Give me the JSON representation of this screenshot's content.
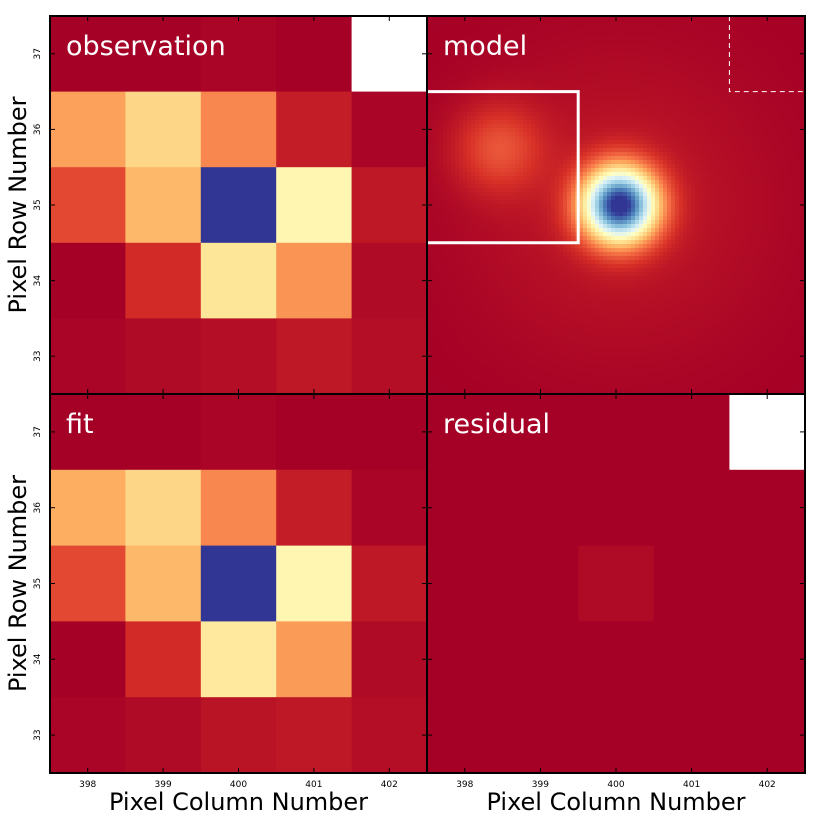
{
  "chart_data": {
    "type": "heatmap",
    "xlabel": "Pixel Column Number",
    "ylabel": "Pixel Row Number",
    "columns": [
      398,
      399,
      400,
      401,
      402
    ],
    "rows": [
      37,
      36,
      35,
      34,
      33
    ],
    "x_tick_labels": [
      "398",
      "399",
      "400",
      "401",
      "402"
    ],
    "y_tick_labels": [
      "37",
      "36",
      "35",
      "34",
      "33"
    ],
    "colormap": "Spectral_r",
    "panels": [
      {
        "name": "observation",
        "label": "observation",
        "grid": [
          [
            0.0,
            0.0,
            0.01,
            0.0,
            null
          ],
          [
            0.28,
            0.38,
            0.24,
            0.06,
            0.01
          ],
          [
            0.14,
            0.32,
            1.0,
            0.47,
            0.05
          ],
          [
            0.0,
            0.09,
            0.42,
            0.26,
            0.02
          ],
          [
            0.01,
            0.02,
            0.03,
            0.05,
            0.03
          ]
        ]
      },
      {
        "name": "model",
        "label": "model",
        "type": "smooth-image",
        "point_sources": [
          {
            "col": 400.05,
            "row": 35.0,
            "amplitude": 1.0,
            "sigma": 0.34
          },
          {
            "col": 398.45,
            "row": 35.75,
            "amplitude": 0.14,
            "sigma": 0.4
          }
        ],
        "boxes": [
          {
            "style": "solid",
            "col_min": 397.5,
            "col_max": 399.5,
            "row_min": 34.5,
            "row_max": 36.5
          },
          {
            "style": "dashed",
            "col_min": 401.5,
            "col_max": 402.5,
            "row_min": 36.5,
            "row_max": 37.5
          }
        ]
      },
      {
        "name": "fit",
        "label": "fit",
        "grid": [
          [
            0.0,
            0.0,
            0.01,
            0.0,
            0.0
          ],
          [
            0.3,
            0.38,
            0.24,
            0.06,
            0.01
          ],
          [
            0.14,
            0.32,
            1.0,
            0.47,
            0.05
          ],
          [
            0.0,
            0.09,
            0.43,
            0.27,
            0.02
          ],
          [
            0.01,
            0.02,
            0.04,
            0.05,
            0.03
          ]
        ]
      },
      {
        "name": "residual",
        "label": "residual",
        "grid": [
          [
            0.0,
            0.0,
            0.0,
            0.0,
            null
          ],
          [
            0.0,
            0.0,
            0.0,
            0.0,
            0.0
          ],
          [
            0.0,
            0.0,
            0.02,
            0.0,
            0.0
          ],
          [
            0.0,
            0.0,
            0.0,
            0.0,
            0.0
          ],
          [
            0.0,
            0.0,
            0.0,
            0.0,
            0.0
          ]
        ]
      }
    ]
  }
}
